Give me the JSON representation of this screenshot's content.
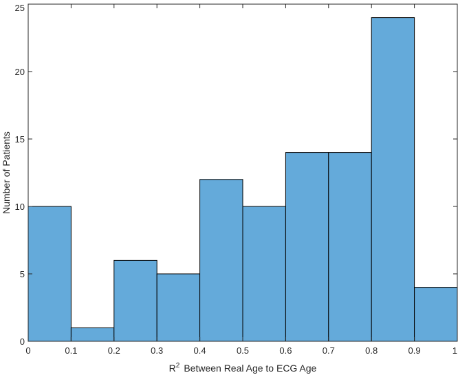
{
  "chart_data": {
    "type": "bar",
    "title": "",
    "xlabel_base": "R",
    "xlabel_sup": "2",
    "xlabel_rest": "Between Real Age to ECG Age",
    "ylabel": "Number of Patients",
    "bin_edges": [
      0,
      0.1,
      0.2,
      0.3,
      0.4,
      0.5,
      0.6,
      0.7,
      0.8,
      0.9,
      1.0
    ],
    "values": [
      10,
      1,
      6,
      5,
      12,
      10,
      14,
      14,
      24,
      4
    ],
    "xlim": [
      0,
      1
    ],
    "ylim": [
      0,
      25
    ],
    "x_ticks": [
      "0",
      "0.1",
      "0.2",
      "0.3",
      "0.4",
      "0.5",
      "0.6",
      "0.7",
      "0.8",
      "0.9",
      "1"
    ],
    "y_ticks": [
      "0",
      "5",
      "10",
      "15",
      "20",
      "25"
    ],
    "bar_color": "#64AADA",
    "edge_color": "#000000",
    "grid": false,
    "legend": "none"
  }
}
